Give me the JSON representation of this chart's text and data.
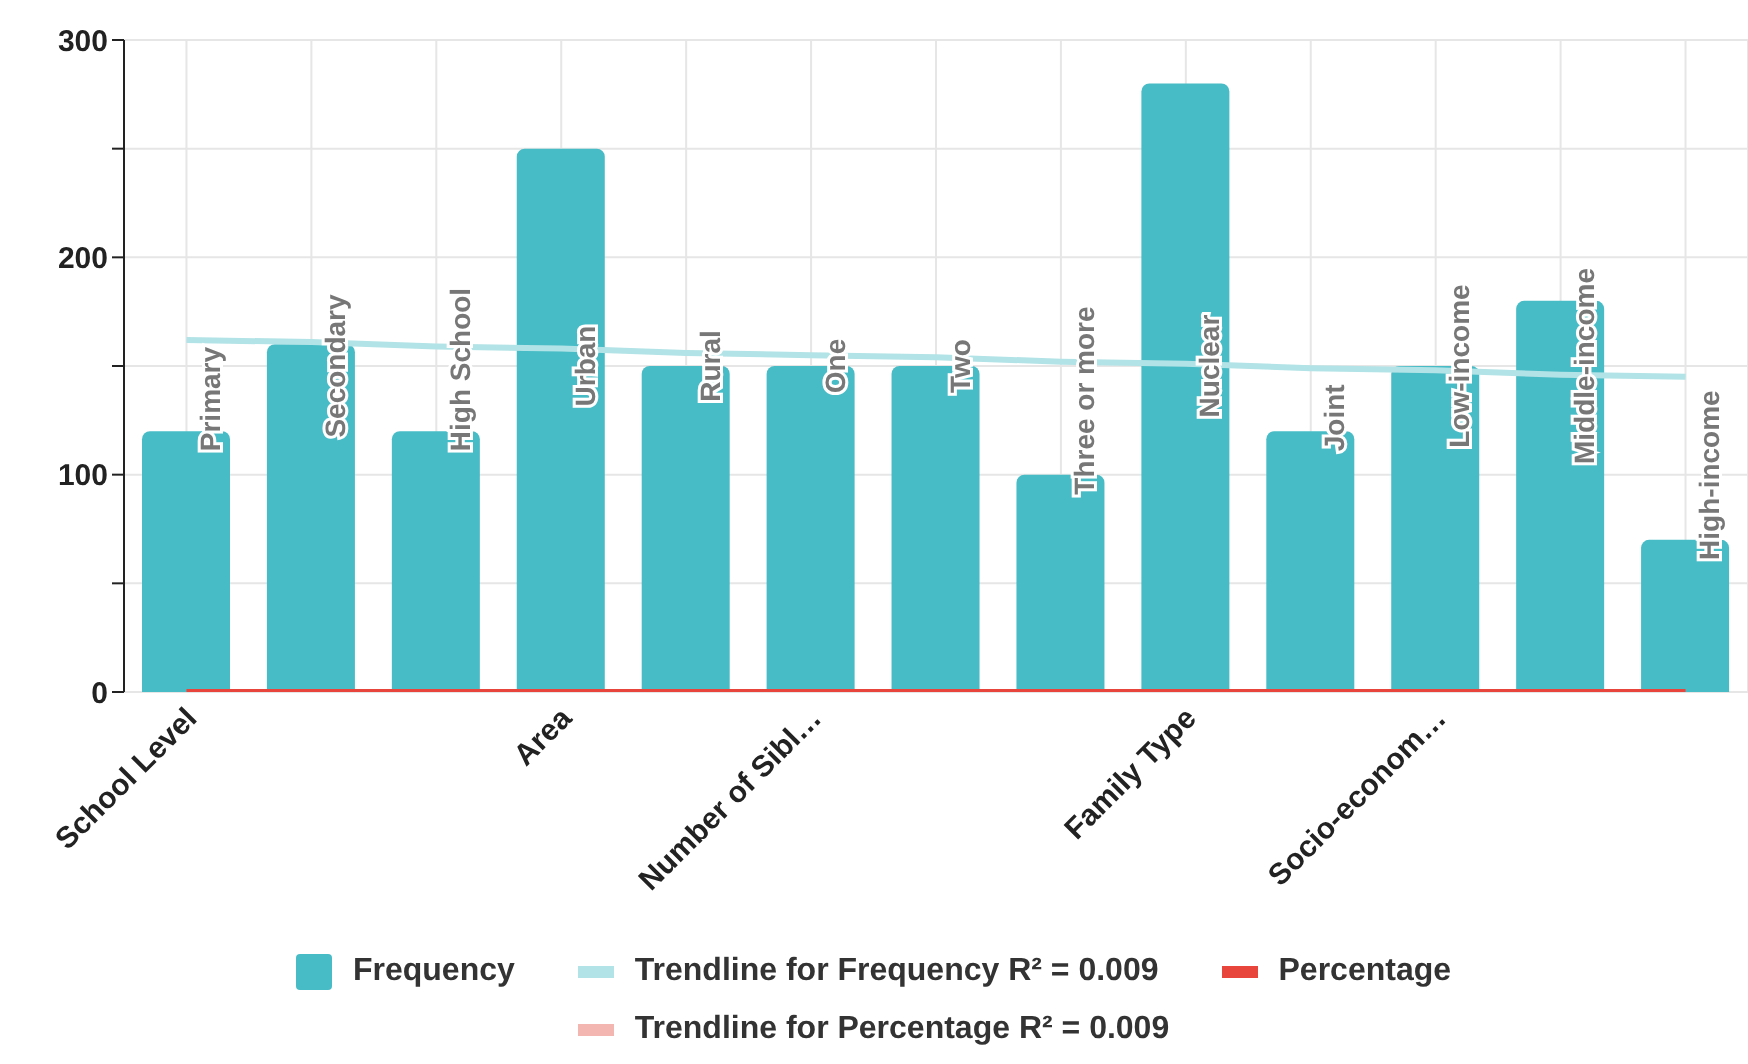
{
  "chart_data": {
    "type": "bar",
    "categories": [
      "School Level",
      null,
      null,
      "Area",
      null,
      "Number of Sibl…",
      null,
      null,
      "Family Type",
      null,
      "Socio-econom…",
      null,
      null
    ],
    "series": [
      {
        "name": "Frequency",
        "type": "bar",
        "color": "#47bcc6",
        "values": [
          120,
          160,
          120,
          250,
          150,
          150,
          150,
          100,
          280,
          120,
          150,
          180,
          70
        ],
        "value_labels": [
          "Primary",
          "Secondary",
          "High School",
          "Urban",
          "Rural",
          "One",
          "Two",
          "Three or more",
          "Nuclear",
          "Joint",
          "Low-income",
          "Middle-income",
          "High-income"
        ]
      },
      {
        "name": "Trendline for Frequency R² = 0.009",
        "type": "line",
        "color": "#b2e3e6",
        "values": [
          162,
          161,
          159,
          158,
          156,
          155,
          154,
          152,
          151,
          149,
          148,
          146,
          145
        ]
      },
      {
        "name": "Percentage",
        "type": "line",
        "color": "#e8453c",
        "values": [
          0,
          0,
          0,
          0,
          0,
          0,
          0,
          0,
          0,
          0,
          0,
          0,
          0
        ]
      },
      {
        "name": "Trendline for Percentage R² = 0.009",
        "type": "line",
        "color": "#f4b6b0",
        "values": [
          null,
          null,
          null,
          null,
          null,
          null,
          null,
          null,
          null,
          null,
          null,
          null,
          null
        ]
      }
    ],
    "ylim": [
      0,
      300
    ],
    "yticks": [
      0,
      {
        "value": 50,
        "label": null
      },
      100,
      {
        "value": 150,
        "label": null
      },
      200,
      {
        "value": 250,
        "label": null
      },
      300
    ],
    "grid": true,
    "legend": "bottom",
    "marker": "none"
  }
}
